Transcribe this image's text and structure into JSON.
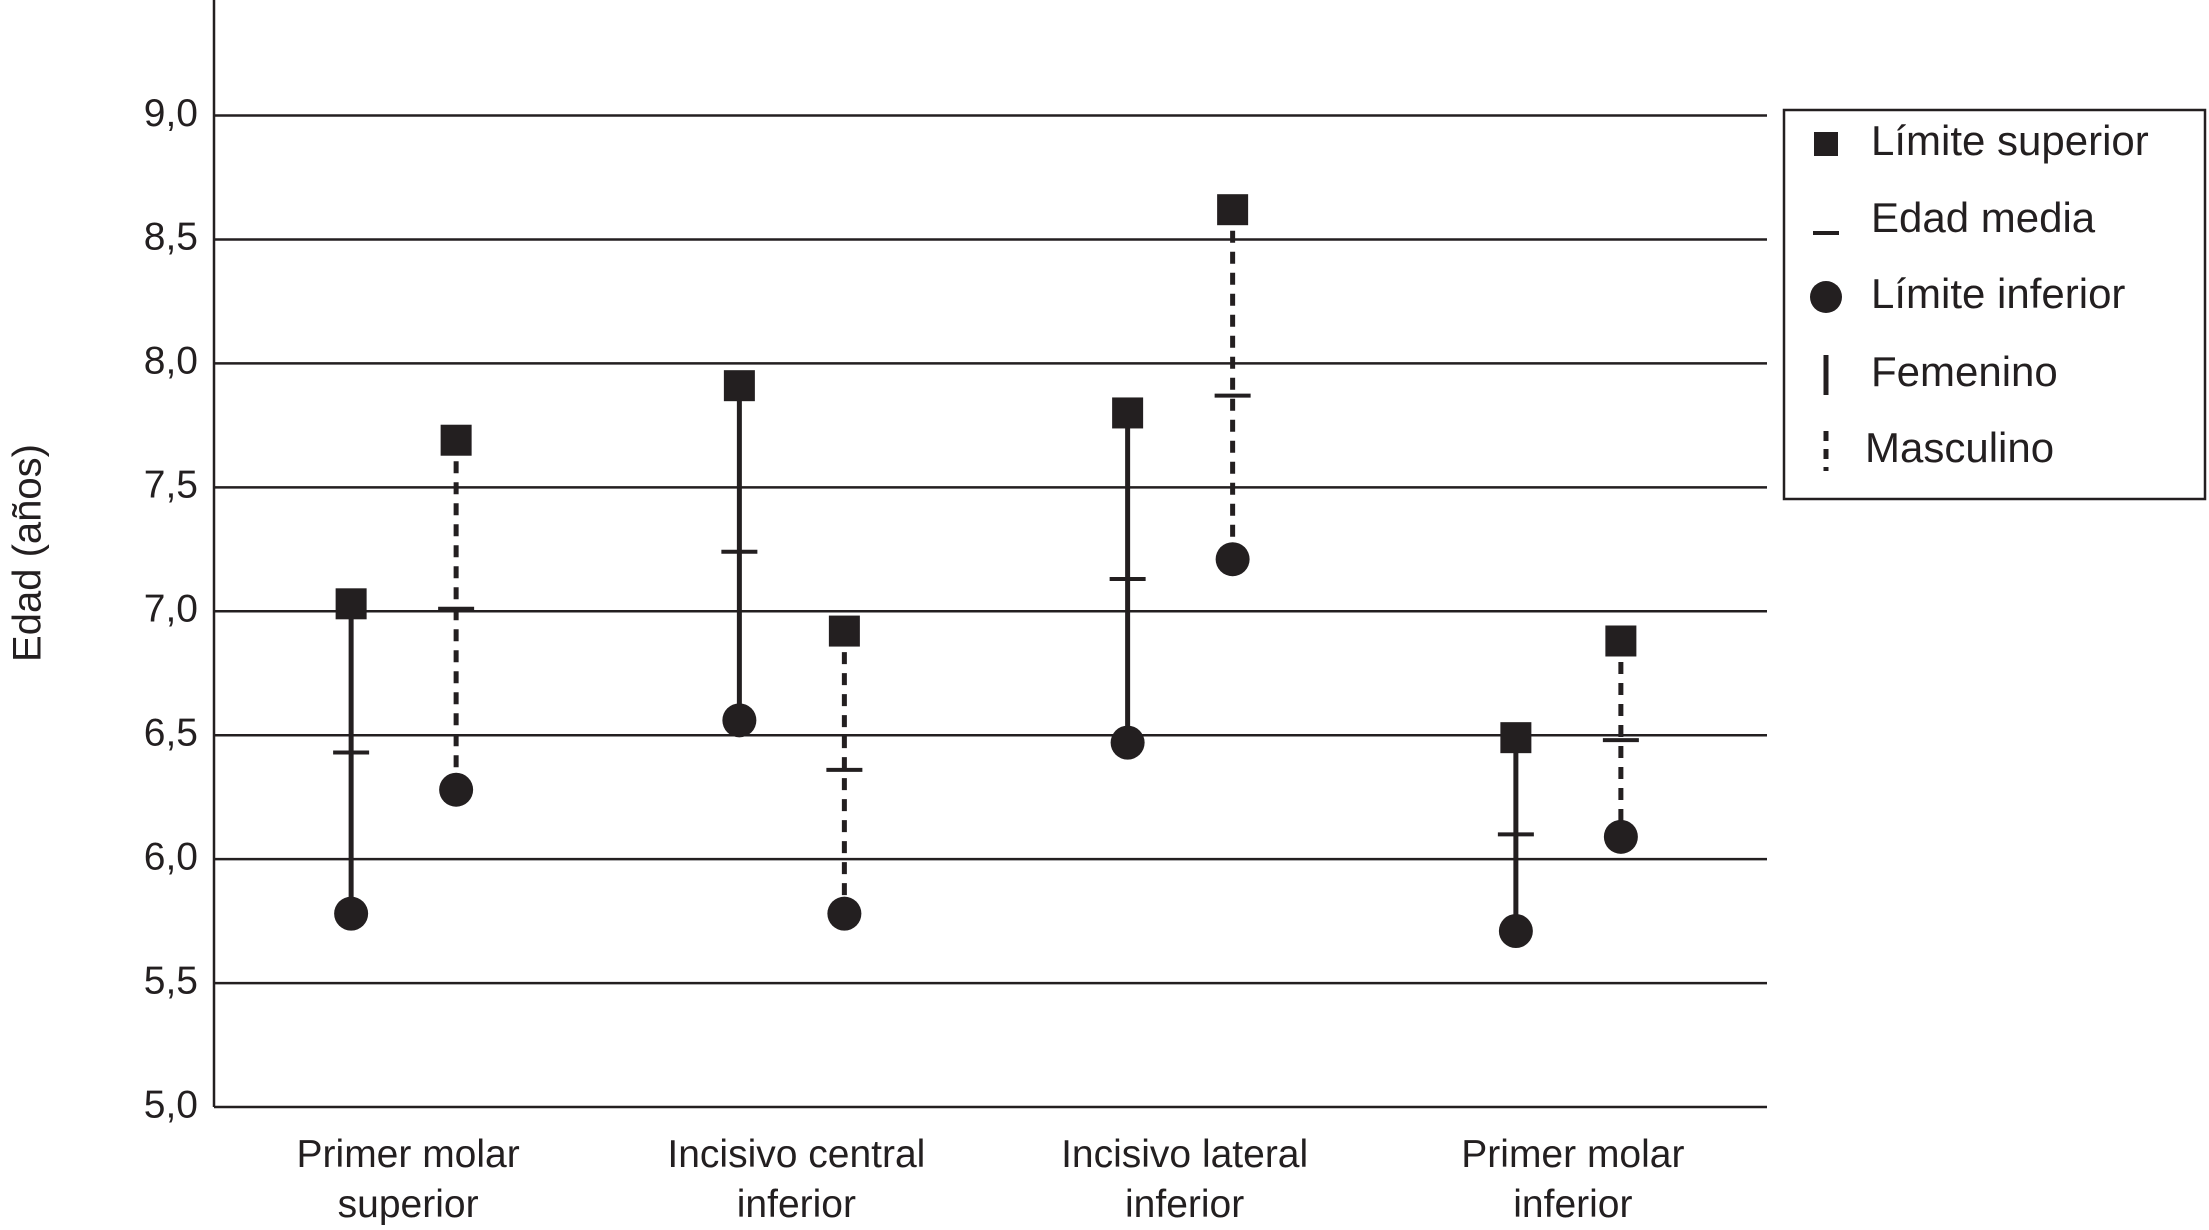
{
  "chart_data": {
    "type": "range",
    "y_label": "Edad (años)",
    "categories": [
      "Primer molar superior",
      "Incisivo central inferior",
      "Incisivo lateral inferior",
      "Primer molar inferior"
    ],
    "marker_names": [
      "Límite superior",
      "Edad media",
      "Límite inferior"
    ],
    "series": [
      {
        "name": "Femenino",
        "dashed": false,
        "color": "#231f20",
        "values": [
          [
            7.03,
            6.43,
            5.78
          ],
          [
            7.91,
            7.24,
            6.56
          ],
          [
            7.8,
            7.13,
            6.47
          ],
          [
            6.49,
            6.1,
            5.71
          ]
        ]
      },
      {
        "name": "Masculino",
        "dashed": true,
        "color": "#231f20",
        "values": [
          [
            7.69,
            7.01,
            6.28
          ],
          [
            6.92,
            6.36,
            5.78
          ],
          [
            8.62,
            7.87,
            7.21
          ],
          [
            6.88,
            6.48,
            6.09
          ]
        ]
      }
    ],
    "ylim": [
      5,
      9.5
    ],
    "yticks": [
      {
        "value": 5,
        "label": "5,0"
      },
      {
        "value": 5.5,
        "label": "5,5"
      },
      {
        "value": 6,
        "label": "6,0"
      },
      {
        "value": 6.5,
        "label": "6,5"
      },
      {
        "value": 7,
        "label": "7,0"
      },
      {
        "value": 7.5,
        "label": "7,5"
      },
      {
        "value": 8,
        "label": "8,0"
      },
      {
        "value": 8.5,
        "label": "8,5"
      },
      {
        "value": 9,
        "label": "9,0"
      }
    ],
    "grid": true,
    "legend": "upper right"
  }
}
